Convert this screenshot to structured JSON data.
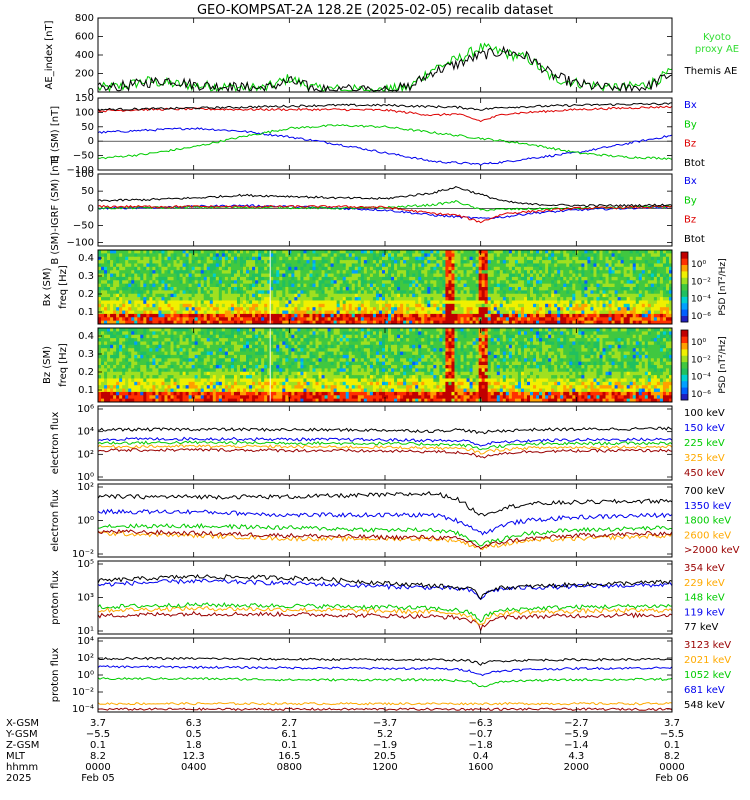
{
  "title": "GEO-KOMPSAT-2A 128.2E (2025-02-05) recalib dataset",
  "colors": {
    "black": "#000000",
    "red": "#dd0000",
    "green": "#00cc00",
    "blue": "#0000ee",
    "orange": "#ffaa00",
    "darkred": "#990000",
    "cyan": "#00b8ff",
    "kyoto": "#33dd33"
  },
  "chart_data": [
    {
      "id": "ae",
      "type": "line",
      "ylabel": "AE_index [nT]",
      "yticks": [
        "0",
        "200",
        "400",
        "600",
        "800"
      ],
      "ylim": [
        0,
        800
      ],
      "x_hours": [
        0,
        1,
        2,
        3,
        4,
        5,
        6,
        7,
        8,
        9,
        10,
        11,
        12,
        13,
        14,
        15,
        16,
        17,
        18,
        19,
        20,
        21,
        22,
        23,
        24
      ],
      "series": [
        {
          "name": "Kyoto proxy AE",
          "color": "green",
          "values": [
            40,
            60,
            120,
            90,
            70,
            60,
            50,
            40,
            150,
            40,
            30,
            20,
            20,
            50,
            250,
            350,
            480,
            420,
            360,
            150,
            100,
            60,
            50,
            80,
            220
          ]
        },
        {
          "name": "Themis AE",
          "color": "black",
          "values": [
            40,
            60,
            100,
            130,
            80,
            60,
            50,
            40,
            120,
            40,
            30,
            30,
            30,
            50,
            220,
            300,
            400,
            440,
            380,
            180,
            90,
            50,
            40,
            60,
            200
          ]
        }
      ]
    },
    {
      "id": "bsm",
      "type": "line",
      "ylabel": "B (SM) [nT]",
      "yticks": [
        "−100",
        "−50",
        "0",
        "50",
        "100",
        "150"
      ],
      "ylim": [
        -100,
        150
      ],
      "x_hours": [
        0,
        2,
        4,
        6,
        8,
        10,
        12,
        14,
        15,
        16,
        17,
        18,
        20,
        22,
        24
      ],
      "series": [
        {
          "name": "Bx",
          "color": "blue",
          "values": [
            30,
            38,
            45,
            35,
            15,
            -10,
            -40,
            -70,
            -75,
            -80,
            -72,
            -60,
            -40,
            -10,
            20
          ]
        },
        {
          "name": "By",
          "color": "green",
          "values": [
            -60,
            -45,
            -20,
            15,
            45,
            55,
            50,
            30,
            20,
            10,
            0,
            -10,
            -40,
            -55,
            -60
          ]
        },
        {
          "name": "Bz",
          "color": "red",
          "values": [
            105,
            110,
            112,
            110,
            110,
            110,
            108,
            90,
            95,
            70,
            95,
            100,
            110,
            115,
            120
          ]
        },
        {
          "name": "Btot",
          "color": "black",
          "values": [
            110,
            112,
            115,
            118,
            122,
            125,
            125,
            120,
            118,
            110,
            118,
            120,
            125,
            128,
            130
          ]
        }
      ]
    },
    {
      "id": "bdiff",
      "type": "line",
      "ylabel": "B (SM)-IGRF (SM) [nT]",
      "yticks": [
        "−100",
        "−50",
        "0",
        "50",
        "100"
      ],
      "ylim": [
        -110,
        100
      ],
      "x_hours": [
        0,
        2,
        4,
        6,
        8,
        10,
        12,
        14,
        15,
        16,
        17,
        18,
        20,
        22,
        24
      ],
      "series": [
        {
          "name": "Bx",
          "color": "blue",
          "values": [
            0,
            2,
            5,
            8,
            5,
            0,
            -5,
            -20,
            -25,
            -30,
            -25,
            -15,
            -5,
            0,
            5
          ]
        },
        {
          "name": "By",
          "color": "green",
          "values": [
            0,
            2,
            3,
            3,
            2,
            0,
            2,
            10,
            20,
            -5,
            -3,
            -2,
            0,
            2,
            5
          ]
        },
        {
          "name": "Bz",
          "color": "red",
          "values": [
            5,
            5,
            5,
            5,
            5,
            5,
            3,
            -15,
            -20,
            -40,
            -15,
            -10,
            0,
            2,
            5
          ]
        },
        {
          "name": "Btot",
          "color": "black",
          "values": [
            22,
            25,
            30,
            38,
            35,
            30,
            28,
            45,
            62,
            40,
            20,
            12,
            8,
            8,
            10
          ]
        }
      ]
    },
    {
      "id": "bxspec",
      "type": "heatmap",
      "panel_label": "Bx (SM)",
      "ylabel": "freq [Hz]",
      "yticks": [
        "0.1",
        "0.2",
        "0.3",
        "0.4"
      ],
      "colorbar_label": "PSD [nT²/Hz]",
      "colorbar_ticks": [
        "10⁰",
        "10⁻²",
        "10⁻⁴",
        "10⁻⁶"
      ]
    },
    {
      "id": "bzspec",
      "type": "heatmap",
      "panel_label": "Bz (SM)",
      "ylabel": "freq [Hz]",
      "yticks": [
        "0.1",
        "0.2",
        "0.3",
        "0.4"
      ],
      "colorbar_label": "PSD [nT²/Hz]",
      "colorbar_ticks": [
        "10⁰",
        "10⁻²",
        "10⁻⁴",
        "10⁻⁶"
      ]
    },
    {
      "id": "elow",
      "type": "line",
      "log": true,
      "ylabel": "electron flux",
      "yticks": [
        "10⁰",
        "10²",
        "10⁴",
        "10⁶"
      ],
      "ylim": [
        1,
        1000000
      ],
      "x_hours": [
        0,
        4,
        8,
        12,
        14,
        15,
        15.5,
        16,
        16.5,
        17,
        18,
        20,
        24
      ],
      "series": [
        {
          "name": "100 keV",
          "color": "black",
          "values": [
            12000,
            13000,
            12000,
            11000,
            9000,
            12000,
            10000,
            6000,
            9000,
            10000,
            12000,
            13000,
            15000
          ]
        },
        {
          "name": "150 keV",
          "color": "blue",
          "values": [
            2000,
            2200,
            2000,
            1800,
            1600,
            1500,
            1400,
            600,
            1000,
            1200,
            1500,
            1800,
            2000
          ]
        },
        {
          "name": "225 keV",
          "color": "green",
          "values": [
            1000,
            1100,
            1000,
            900,
            800,
            700,
            600,
            300,
            500,
            600,
            800,
            900,
            1000
          ]
        },
        {
          "name": "325 keV",
          "color": "orange",
          "values": [
            500,
            550,
            500,
            450,
            400,
            350,
            300,
            150,
            250,
            300,
            400,
            450,
            500
          ]
        },
        {
          "name": "450 keV",
          "color": "darkred",
          "values": [
            250,
            280,
            250,
            220,
            200,
            170,
            150,
            60,
            120,
            150,
            200,
            230,
            250
          ]
        }
      ]
    },
    {
      "id": "ehigh",
      "type": "line",
      "log": true,
      "ylabel": "electron flux",
      "yticks": [
        "10⁻²",
        "10⁰",
        "10²"
      ],
      "ylim": [
        0.01,
        100
      ],
      "x_hours": [
        0,
        4,
        8,
        12,
        14,
        15,
        15.5,
        16,
        16.5,
        17,
        18,
        20,
        24
      ],
      "series": [
        {
          "name": "700 keV",
          "color": "black",
          "values": [
            20,
            20,
            20,
            25,
            30,
            15,
            5,
            2,
            3,
            5,
            8,
            10,
            12
          ]
        },
        {
          "name": "1350 keV",
          "color": "blue",
          "values": [
            3,
            3,
            2,
            2,
            2,
            1,
            0.5,
            0.2,
            0.3,
            0.6,
            1,
            1.5,
            2
          ]
        },
        {
          "name": "1800 keV",
          "color": "green",
          "values": [
            0.5,
            0.5,
            0.4,
            0.3,
            0.3,
            0.2,
            0.1,
            0.05,
            0.07,
            0.1,
            0.2,
            0.3,
            0.4
          ]
        },
        {
          "name": "2600 keV",
          "color": "orange",
          "values": [
            0.2,
            0.15,
            0.1,
            0.1,
            0.1,
            0.08,
            0.05,
            0.03,
            0.04,
            0.05,
            0.08,
            0.1,
            0.15
          ]
        },
        {
          "name": ">2000 keV",
          "color": "darkred",
          "values": [
            0.25,
            0.2,
            0.15,
            0.12,
            0.12,
            0.1,
            0.07,
            0.03,
            0.05,
            0.07,
            0.1,
            0.15,
            0.2
          ]
        }
      ]
    },
    {
      "id": "plow",
      "type": "line",
      "log": true,
      "ylabel": "proton flux",
      "yticks": [
        "10¹",
        "10³",
        "10⁵"
      ],
      "ylim": [
        10,
        100000
      ],
      "x_hours": [
        0,
        4,
        8,
        12,
        14,
        15,
        15.5,
        16,
        16.5,
        17,
        18,
        20,
        24
      ],
      "series": [
        {
          "name": "354 keV",
          "color": "darkred",
          "values": [
            100,
            130,
            120,
            100,
            90,
            80,
            60,
            20,
            60,
            80,
            90,
            100,
            110
          ]
        },
        {
          "name": "229 keV",
          "color": "orange",
          "values": [
            200,
            250,
            220,
            180,
            160,
            140,
            100,
            30,
            100,
            140,
            160,
            180,
            200
          ]
        },
        {
          "name": "148 keV",
          "color": "green",
          "values": [
            300,
            400,
            350,
            300,
            250,
            200,
            150,
            50,
            150,
            200,
            250,
            300,
            350
          ]
        },
        {
          "name": "119 keV",
          "color": "blue",
          "values": [
            5000,
            8000,
            6000,
            4000,
            3500,
            3000,
            2500,
            800,
            2500,
            3000,
            3500,
            4000,
            5000
          ]
        },
        {
          "name": "77 keV",
          "color": "black",
          "values": [
            8000,
            14000,
            12000,
            6000,
            4500,
            3500,
            3000,
            1000,
            3000,
            3500,
            4000,
            5000,
            7000
          ]
        }
      ]
    },
    {
      "id": "phigh",
      "type": "line",
      "log": true,
      "ylabel": "proton flux",
      "yticks": [
        "10⁻⁴",
        "10⁻²",
        "10⁰",
        "10²",
        "10⁴"
      ],
      "ylim": [
        0.0001,
        10000
      ],
      "x_hours": [
        0,
        4,
        8,
        12,
        14,
        15,
        15.5,
        16,
        16.5,
        17,
        18,
        20,
        24
      ],
      "series": [
        {
          "name": "3123 keV",
          "color": "darkred",
          "values": [
            0.0002,
            0.0002,
            0.0002,
            0.0002,
            0.0002,
            0.0002,
            0.0002,
            0.0002,
            0.0002,
            0.0002,
            0.0002,
            0.0002,
            0.0002
          ]
        },
        {
          "name": "2021 keV",
          "color": "orange",
          "values": [
            0.0008,
            0.0008,
            0.0008,
            0.0008,
            0.0008,
            0.0008,
            0.0008,
            0.0008,
            0.0008,
            0.0008,
            0.0008,
            0.0008,
            0.0008
          ]
        },
        {
          "name": "1052 keV",
          "color": "green",
          "values": [
            0.4,
            0.4,
            0.3,
            0.3,
            0.3,
            0.25,
            0.2,
            0.05,
            0.1,
            0.2,
            0.25,
            0.3,
            0.35
          ]
        },
        {
          "name": "681 keV",
          "color": "blue",
          "values": [
            8,
            7,
            6,
            5,
            5,
            4,
            3,
            1,
            2,
            3,
            4,
            5,
            6
          ]
        },
        {
          "name": "548 keV",
          "color": "black",
          "values": [
            60,
            60,
            50,
            45,
            45,
            40,
            35,
            15,
            30,
            35,
            40,
            45,
            50
          ]
        }
      ]
    }
  ],
  "xaxis": {
    "rows": [
      {
        "label": "X-GSM",
        "values": [
          "3.7",
          "6.3",
          "2.7",
          "−3.7",
          "−6.3",
          "−2.7",
          "3.7"
        ]
      },
      {
        "label": "Y-GSM",
        "values": [
          "−5.5",
          "0.5",
          "6.1",
          "5.2",
          "−0.7",
          "−5.9",
          "−5.5"
        ]
      },
      {
        "label": "Z-GSM",
        "values": [
          "0.1",
          "1.8",
          "0.1",
          "−1.9",
          "−1.8",
          "−1.4",
          "0.1"
        ]
      },
      {
        "label": "MLT",
        "values": [
          "8.2",
          "12.3",
          "16.5",
          "20.5",
          "0.4",
          "4.3",
          "8.2"
        ]
      },
      {
        "label": "hhmm",
        "values": [
          "0000",
          "0400",
          "0800",
          "1200",
          "1600",
          "2000",
          "0000"
        ]
      }
    ],
    "year": "2025",
    "date_start": "Feb 05",
    "date_end": "Feb 06"
  }
}
